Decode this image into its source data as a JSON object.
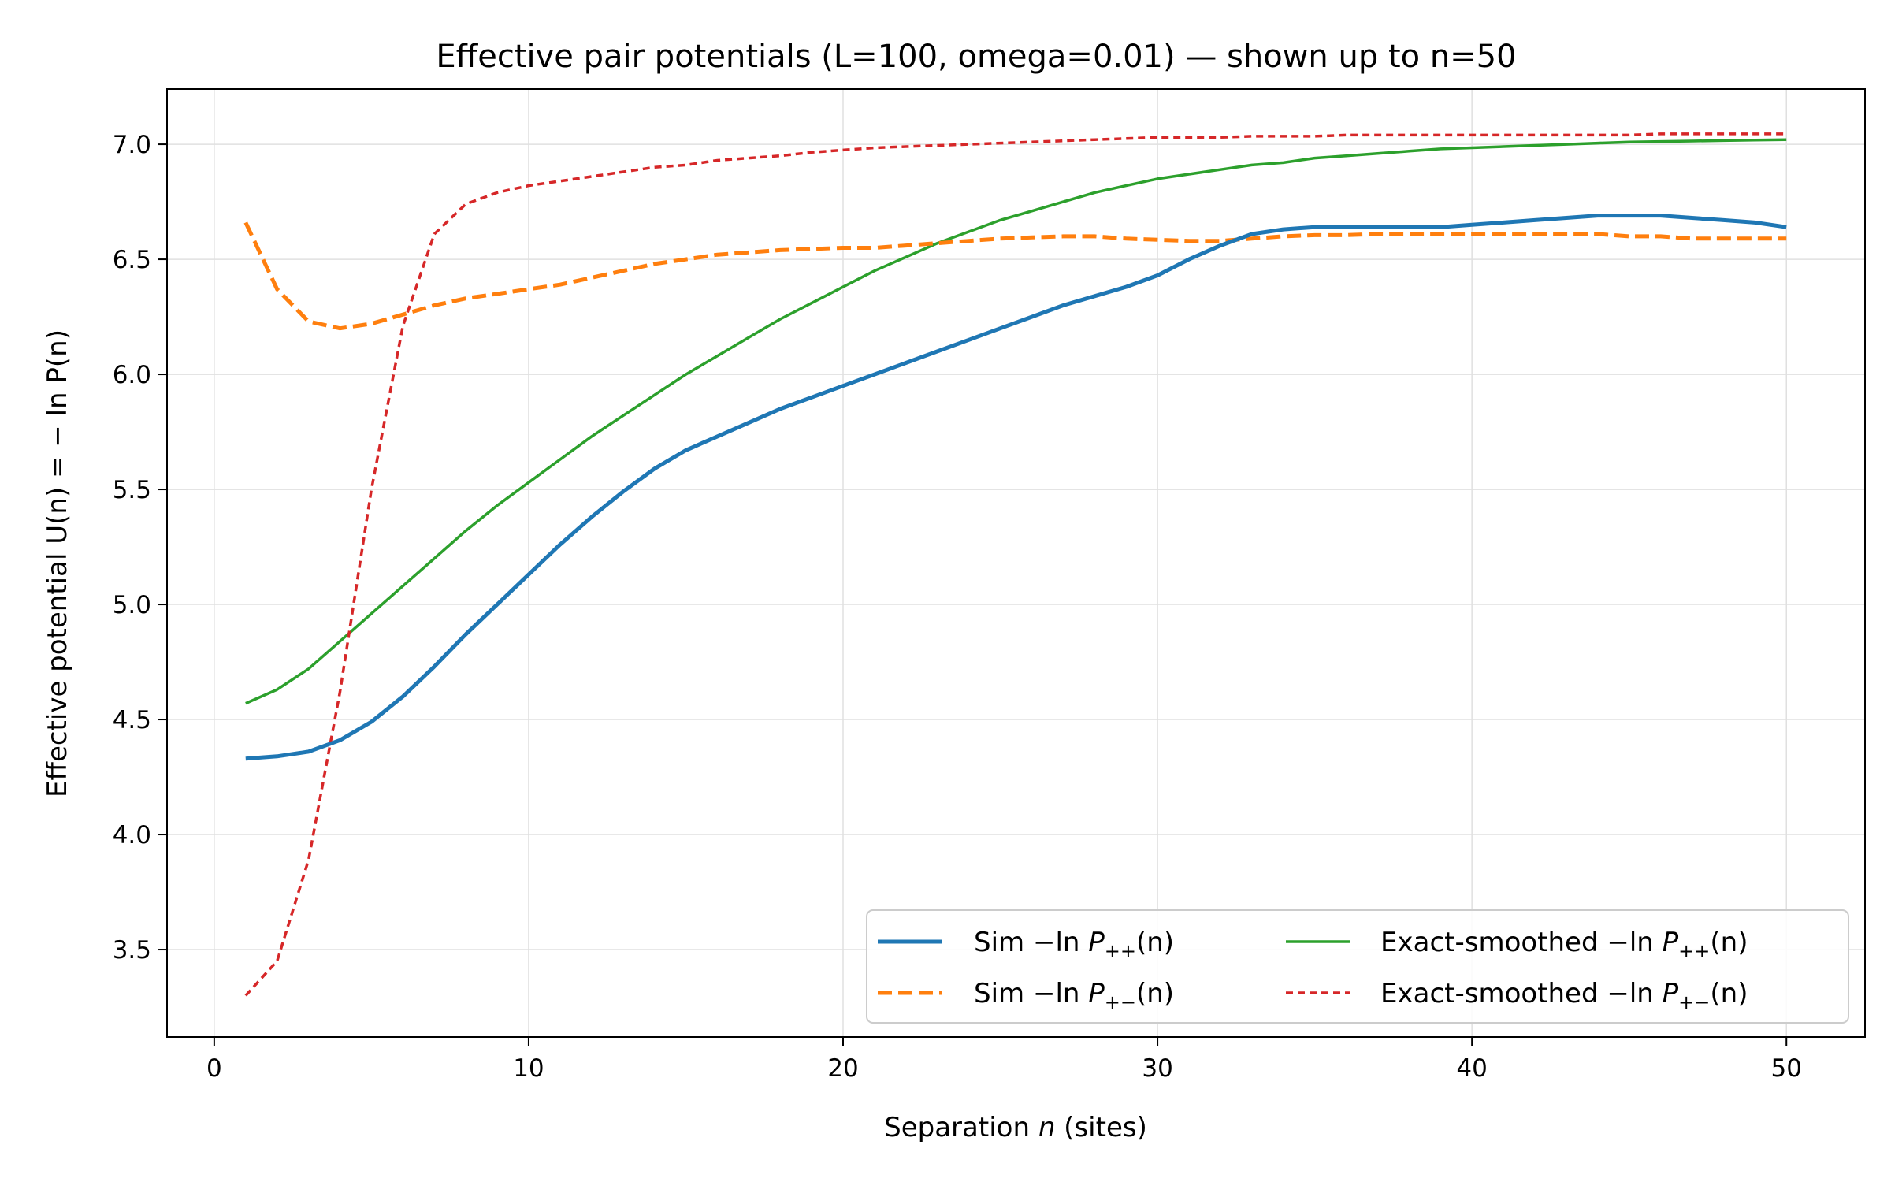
{
  "chart_data": {
    "type": "line",
    "title": "Effective pair potentials (L=100, omega=0.01) — shown up to n=50",
    "xlabel": {
      "prefix": "Separation ",
      "var": "n",
      "suffix": " (sites)"
    },
    "ylabel": {
      "prefix": "Effective potential ",
      "expr": "U(n) = − ln P(n)"
    },
    "xlim": [
      -1.5,
      52.5
    ],
    "ylim": [
      3.12,
      7.24
    ],
    "xticks": [
      0,
      10,
      20,
      30,
      40,
      50
    ],
    "xtick_labels": [
      "0",
      "10",
      "20",
      "30",
      "40",
      "50"
    ],
    "yticks": [
      3.5,
      4.0,
      4.5,
      5.0,
      5.5,
      6.0,
      6.5,
      7.0
    ],
    "ytick_labels": [
      "3.5",
      "4.0",
      "4.5",
      "5.0",
      "5.5",
      "6.0",
      "6.5",
      "7.0"
    ],
    "grid": true,
    "legend_position": "lower-right",
    "legend_columns": 2,
    "series": [
      {
        "name": "Sim −ln P++(n)",
        "name_parts": {
          "prefix": "Sim −ln ",
          "var": "P",
          "sub": "++",
          "suffix": "(n)"
        },
        "color": "#1f77b4",
        "style": "solid",
        "width": "thick",
        "x": [
          1,
          2,
          3,
          4,
          5,
          6,
          7,
          8,
          9,
          10,
          11,
          12,
          13,
          14,
          15,
          16,
          17,
          18,
          19,
          20,
          21,
          22,
          23,
          24,
          25,
          26,
          27,
          28,
          29,
          30,
          31,
          32,
          33,
          34,
          35,
          36,
          37,
          38,
          39,
          40,
          41,
          42,
          43,
          44,
          45,
          46,
          47,
          48,
          49,
          50
        ],
        "y": [
          4.33,
          4.34,
          4.36,
          4.41,
          4.49,
          4.6,
          4.73,
          4.87,
          5.0,
          5.13,
          5.26,
          5.38,
          5.49,
          5.59,
          5.67,
          5.73,
          5.79,
          5.85,
          5.9,
          5.95,
          6.0,
          6.05,
          6.1,
          6.15,
          6.2,
          6.25,
          6.3,
          6.34,
          6.38,
          6.43,
          6.5,
          6.56,
          6.61,
          6.63,
          6.64,
          6.64,
          6.64,
          6.64,
          6.64,
          6.65,
          6.66,
          6.67,
          6.68,
          6.69,
          6.69,
          6.69,
          6.68,
          6.67,
          6.66,
          6.64
        ]
      },
      {
        "name": "Sim −ln P+−(n)",
        "name_parts": {
          "prefix": "Sim −ln ",
          "var": "P",
          "sub": "+−",
          "suffix": "(n)"
        },
        "color": "#ff7f0e",
        "style": "dashed",
        "width": "thick",
        "x": [
          1,
          2,
          3,
          4,
          5,
          6,
          7,
          8,
          9,
          10,
          11,
          12,
          13,
          14,
          15,
          16,
          17,
          18,
          19,
          20,
          21,
          22,
          23,
          24,
          25,
          26,
          27,
          28,
          29,
          30,
          31,
          32,
          33,
          34,
          35,
          36,
          37,
          38,
          39,
          40,
          41,
          42,
          43,
          44,
          45,
          46,
          47,
          48,
          49,
          50
        ],
        "y": [
          6.66,
          6.37,
          6.23,
          6.2,
          6.22,
          6.26,
          6.3,
          6.33,
          6.35,
          6.37,
          6.39,
          6.42,
          6.45,
          6.48,
          6.5,
          6.52,
          6.53,
          6.54,
          6.545,
          6.55,
          6.55,
          6.56,
          6.57,
          6.58,
          6.59,
          6.595,
          6.6,
          6.6,
          6.59,
          6.585,
          6.58,
          6.58,
          6.59,
          6.6,
          6.605,
          6.605,
          6.61,
          6.61,
          6.61,
          6.61,
          6.61,
          6.61,
          6.61,
          6.61,
          6.6,
          6.6,
          6.59,
          6.59,
          6.59,
          6.59
        ]
      },
      {
        "name": "Exact-smoothed −ln P++(n)",
        "name_parts": {
          "prefix": "Exact-smoothed −ln ",
          "var": "P",
          "sub": "++",
          "suffix": "(n)"
        },
        "color": "#2ca02c",
        "style": "solid",
        "width": "thin",
        "x": [
          1,
          2,
          3,
          4,
          5,
          6,
          7,
          8,
          9,
          10,
          11,
          12,
          13,
          14,
          15,
          16,
          17,
          18,
          19,
          20,
          21,
          22,
          23,
          24,
          25,
          26,
          27,
          28,
          29,
          30,
          31,
          32,
          33,
          34,
          35,
          36,
          37,
          38,
          39,
          40,
          41,
          42,
          43,
          44,
          45,
          46,
          47,
          48,
          49,
          50
        ],
        "y": [
          4.57,
          4.63,
          4.72,
          4.84,
          4.96,
          5.08,
          5.2,
          5.32,
          5.43,
          5.53,
          5.63,
          5.73,
          5.82,
          5.91,
          6.0,
          6.08,
          6.16,
          6.24,
          6.31,
          6.38,
          6.45,
          6.51,
          6.57,
          6.62,
          6.67,
          6.71,
          6.75,
          6.79,
          6.82,
          6.85,
          6.87,
          6.89,
          6.91,
          6.92,
          6.94,
          6.95,
          6.96,
          6.97,
          6.98,
          6.985,
          6.99,
          6.995,
          7.0,
          7.005,
          7.01,
          7.012,
          7.014,
          7.016,
          7.018,
          7.02
        ]
      },
      {
        "name": "Exact-smoothed −ln P+−(n)",
        "name_parts": {
          "prefix": "Exact-smoothed −ln ",
          "var": "P",
          "sub": "+−",
          "suffix": "(n)"
        },
        "color": "#d62728",
        "style": "dotted-dash",
        "width": "thin",
        "x": [
          1,
          2,
          3,
          4,
          5,
          6,
          7,
          8,
          9,
          10,
          11,
          12,
          13,
          14,
          15,
          16,
          17,
          18,
          19,
          20,
          21,
          22,
          23,
          24,
          25,
          26,
          27,
          28,
          29,
          30,
          31,
          32,
          33,
          34,
          35,
          36,
          37,
          38,
          39,
          40,
          41,
          42,
          43,
          44,
          45,
          46,
          47,
          48,
          49,
          50
        ],
        "y": [
          3.3,
          3.45,
          3.89,
          4.62,
          5.5,
          6.21,
          6.61,
          6.74,
          6.79,
          6.82,
          6.84,
          6.86,
          6.88,
          6.9,
          6.91,
          6.93,
          6.94,
          6.95,
          6.965,
          6.975,
          6.985,
          6.99,
          6.995,
          7.0,
          7.005,
          7.01,
          7.015,
          7.02,
          7.025,
          7.03,
          7.03,
          7.03,
          7.035,
          7.035,
          7.035,
          7.04,
          7.04,
          7.04,
          7.04,
          7.04,
          7.04,
          7.04,
          7.04,
          7.04,
          7.04,
          7.045,
          7.045,
          7.045,
          7.045,
          7.045
        ]
      }
    ]
  }
}
